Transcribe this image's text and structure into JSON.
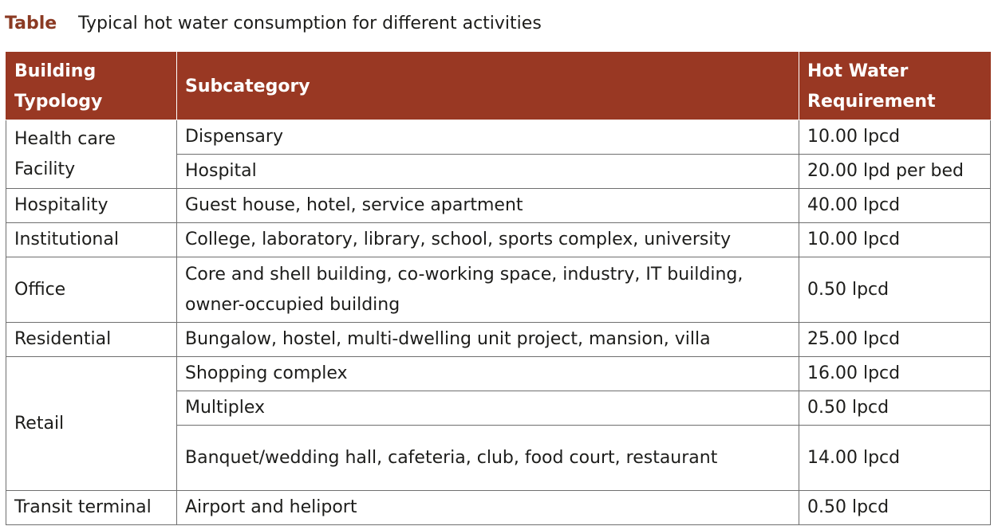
{
  "caption": {
    "label": "Table",
    "text": "Typical hot water consumption for different activities"
  },
  "table": {
    "headers": [
      "Building Typology",
      "Subcategory",
      "Hot Water Requirement"
    ],
    "rows": [
      {
        "typology": "Health care Facility",
        "subcategory": "Dispensary",
        "requirement": "10.00 lpcd"
      },
      {
        "typology": "",
        "subcategory": "Hospital",
        "requirement": "20.00 lpd per bed"
      },
      {
        "typology": "Hospitality",
        "subcategory": "Guest house, hotel, service apartment",
        "requirement": "40.00 lpcd"
      },
      {
        "typology": "Institutional",
        "subcategory": "College, laboratory, library, school, sports complex, university",
        "requirement": "10.00 lpcd"
      },
      {
        "typology": "Office",
        "subcategory": "Core and shell building, co-working space, industry, IT building, owner-occupied building",
        "requirement": "0.50 lpcd"
      },
      {
        "typology": "Residential",
        "subcategory": "Bungalow, hostel, multi-dwelling unit project, mansion, villa",
        "requirement": "25.00 lpcd"
      },
      {
        "typology": "Retail",
        "subcategory": "Shopping complex",
        "requirement": "16.00 lpcd"
      },
      {
        "typology": "",
        "subcategory": "Multiplex",
        "requirement": "0.50 lpcd"
      },
      {
        "typology": "",
        "subcategory": "Banquet/wedding hall, cafeteria, club, food court, restaurant",
        "requirement": "14.00 lpcd"
      },
      {
        "typology": "Transit terminal",
        "subcategory": "Airport and heliport",
        "requirement": "0.50 lpcd"
      }
    ]
  }
}
